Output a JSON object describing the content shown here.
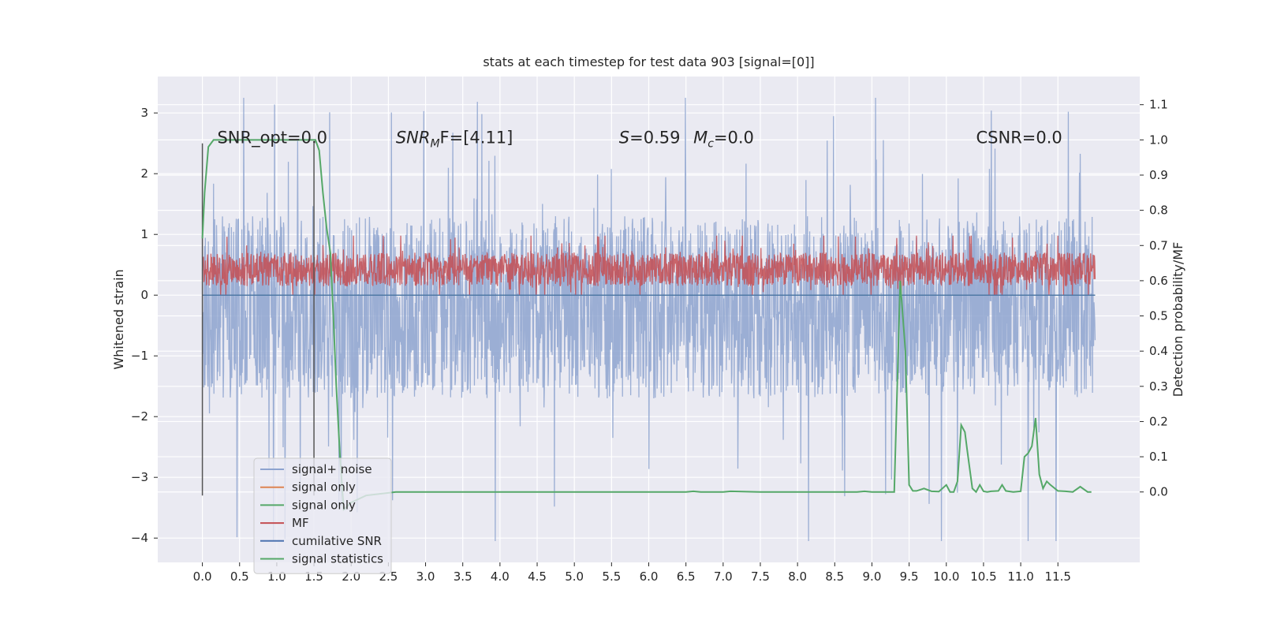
{
  "chart_data": {
    "type": "line",
    "title": "stats at each timestep for test data 903 [signal=[0]]",
    "xlabel": "",
    "ylabel": "Whitened strain",
    "ylabel_right": "Detection probability/MF",
    "xlim": [
      -0.6,
      12.6
    ],
    "ylim": [
      -4.4,
      3.6
    ],
    "ylim_right": [
      -0.2,
      1.18
    ],
    "x_ticks": [
      "0.0",
      "0.5",
      "1.0",
      "1.5",
      "2.0",
      "2.5",
      "3.0",
      "3.5",
      "4.0",
      "4.5",
      "5.0",
      "5.5",
      "6.0",
      "6.5",
      "7.0",
      "7.5",
      "8.0",
      "8.5",
      "9.0",
      "9.5",
      "10.0",
      "10.5",
      "11.0",
      "11.5"
    ],
    "y_ticks": [
      "−4",
      "−3",
      "−2",
      "−1",
      "0",
      "1",
      "2",
      "3"
    ],
    "y_ticks_right": [
      "0.0",
      "0.1",
      "0.2",
      "0.3",
      "0.4",
      "0.5",
      "0.6",
      "0.7",
      "0.8",
      "0.9",
      "1.0",
      "1.1"
    ],
    "grid": true,
    "legend_placement": "lower-left",
    "annotations": [
      {
        "id": "snr-opt",
        "text": "SNR_opt=0.0",
        "x": 0.2,
        "y": 2.5
      },
      {
        "id": "snr-mf",
        "prefix": "SNR",
        "sub": "M",
        "suffix": "F=[4.11]",
        "x": 2.6,
        "y": 2.5
      },
      {
        "id": "s-val",
        "prefix": "S",
        "suffix": "=0.59",
        "x": 5.6,
        "y": 2.5
      },
      {
        "id": "mc-val",
        "prefix": "M",
        "sub": "c",
        "suffix": "=0.0",
        "x": 6.6,
        "y": 2.5
      },
      {
        "id": "csnr",
        "text": "CSNR=0.0",
        "x": 10.4,
        "y": 2.5
      }
    ],
    "series": [
      {
        "name": "signal+ noise",
        "color": "#8da3cf",
        "axis": "left",
        "style": "noise",
        "x_range": [
          0.0,
          12.0
        ],
        "band": [
          -1.7,
          1.3
        ],
        "extremes": [
          -4.05,
          3.25
        ]
      },
      {
        "name": "signal only",
        "color": "#dd8452",
        "axis": "left",
        "style": "flat",
        "x_range": [
          0.0,
          12.0
        ],
        "value": 0.0
      },
      {
        "name": "signal only",
        "color": "#55a868",
        "axis": "left",
        "style": "flat",
        "x_range": [
          0.0,
          12.0
        ],
        "value": 0.0
      },
      {
        "name": "MF",
        "color": "#c44e52",
        "axis": "left",
        "style": "noise",
        "x_range": [
          0.0,
          12.0
        ],
        "band": [
          0.15,
          0.7
        ],
        "extremes": [
          0.0,
          0.98
        ]
      },
      {
        "name": "cumilative SNR",
        "color": "#4c72b0",
        "axis": "left",
        "style": "flat",
        "x_range": [
          0.0,
          12.0
        ],
        "value": 0.0
      },
      {
        "name": "signal statistics",
        "color": "#55a868",
        "axis": "right",
        "style": "line",
        "x": [
          0.0,
          0.03,
          0.08,
          0.15,
          0.3,
          0.6,
          1.0,
          1.3,
          1.45,
          1.52,
          1.57,
          1.62,
          1.67,
          1.72,
          1.76,
          1.8,
          1.85,
          1.9,
          2.0,
          2.2,
          2.6,
          3.0,
          4.0,
          5.0,
          6.0,
          6.5,
          6.6,
          6.7,
          7.0,
          7.1,
          7.5,
          8.0,
          8.5,
          8.8,
          8.9,
          9.0,
          9.2,
          9.3,
          9.38,
          9.45,
          9.5,
          9.55,
          9.6,
          9.7,
          9.8,
          9.9,
          10.0,
          10.05,
          10.1,
          10.15,
          10.2,
          10.25,
          10.28,
          10.35,
          10.4,
          10.45,
          10.5,
          10.55,
          10.6,
          10.7,
          10.75,
          10.8,
          10.9,
          11.0,
          11.05,
          11.1,
          11.15,
          11.2,
          11.25,
          11.3,
          11.35,
          11.4,
          11.5,
          11.6,
          11.7,
          11.8,
          11.9,
          11.95
        ],
        "values": [
          0.72,
          0.85,
          0.98,
          1.0,
          1.0,
          1.0,
          1.0,
          1.0,
          1.0,
          1.0,
          0.97,
          0.85,
          0.75,
          0.68,
          0.5,
          0.3,
          0.1,
          -0.05,
          -0.03,
          -0.01,
          0.0,
          0.0,
          0.0,
          0.0,
          0.0,
          0.0,
          0.002,
          0.0,
          0.0,
          0.002,
          0.0,
          0.0,
          0.0,
          0.0,
          0.002,
          0.0,
          0.0,
          0.0,
          0.6,
          0.4,
          0.02,
          0.003,
          0.003,
          0.01,
          0.002,
          0.001,
          0.02,
          0.0,
          0.0,
          0.03,
          0.19,
          0.17,
          0.12,
          0.01,
          0.0,
          0.02,
          0.002,
          0.0,
          0.002,
          0.003,
          0.02,
          0.003,
          0.0,
          0.002,
          0.1,
          0.11,
          0.13,
          0.21,
          0.05,
          0.01,
          0.03,
          0.02,
          0.003,
          0.002,
          0.0,
          0.015,
          0.0,
          0.0
        ]
      }
    ],
    "vlines": [
      {
        "x": 0.0,
        "y_range": [
          -3.3,
          2.5
        ],
        "color": "#555555"
      },
      {
        "x": 1.5,
        "y_range": [
          -3.3,
          2.5
        ],
        "color": "#555555"
      }
    ]
  }
}
